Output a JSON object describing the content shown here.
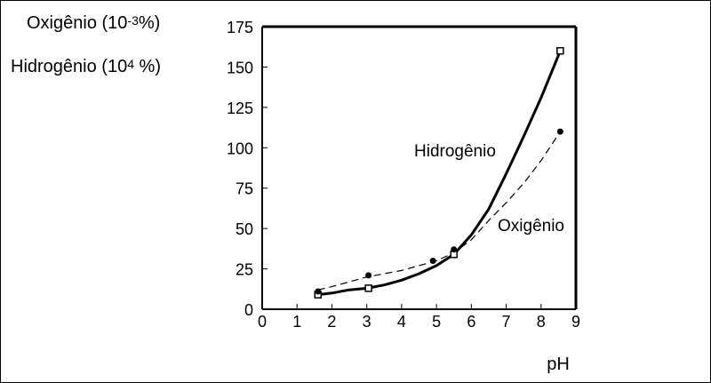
{
  "chart_data": {
    "type": "line",
    "title": "",
    "xlabel": "pH",
    "ylabel_lines": [
      {
        "prefix": "Oxigênio  (10",
        "exponent": "-3",
        "suffix": "%)"
      },
      {
        "prefix": "Hidrogênio (10",
        "exponent": "4",
        "suffix": " %)"
      }
    ],
    "xlim": [
      0,
      9
    ],
    "ylim": [
      0,
      175
    ],
    "xticks": [
      "0",
      "1",
      "2",
      "3",
      "4",
      "5",
      "6",
      "7",
      "8",
      "9"
    ],
    "yticks": [
      "0",
      "25",
      "50",
      "75",
      "100",
      "125",
      "150",
      "175"
    ],
    "grid": false,
    "series": [
      {
        "name": "Hidrogênio",
        "marker": "square",
        "x": [
          1.6,
          3.05,
          5.5,
          8.55
        ],
        "y": [
          9,
          13,
          34,
          160
        ],
        "curve_x": [
          1.6,
          2.0,
          2.5,
          3.0,
          3.5,
          4.0,
          4.5,
          5.0,
          5.5,
          6.0,
          6.5,
          7.0,
          7.5,
          8.0,
          8.55
        ],
        "curve_y": [
          9,
          10,
          12,
          13,
          15,
          18,
          22,
          27,
          34,
          46,
          62,
          84,
          107,
          131,
          160
        ]
      },
      {
        "name": "Oxigênio",
        "marker": "dot",
        "x": [
          1.6,
          3.05,
          4.9,
          5.5,
          8.55
        ],
        "y": [
          11,
          21,
          30,
          37,
          110
        ],
        "curve_x": [
          1.6,
          2.0,
          2.5,
          3.0,
          3.5,
          4.0,
          4.5,
          5.0,
          5.5,
          6.0,
          6.5,
          7.0,
          7.5,
          8.0,
          8.55
        ],
        "curve_y": [
          12,
          14,
          17,
          20,
          22,
          24,
          27,
          30,
          35,
          43,
          55,
          66,
          78,
          92,
          110
        ]
      }
    ]
  }
}
